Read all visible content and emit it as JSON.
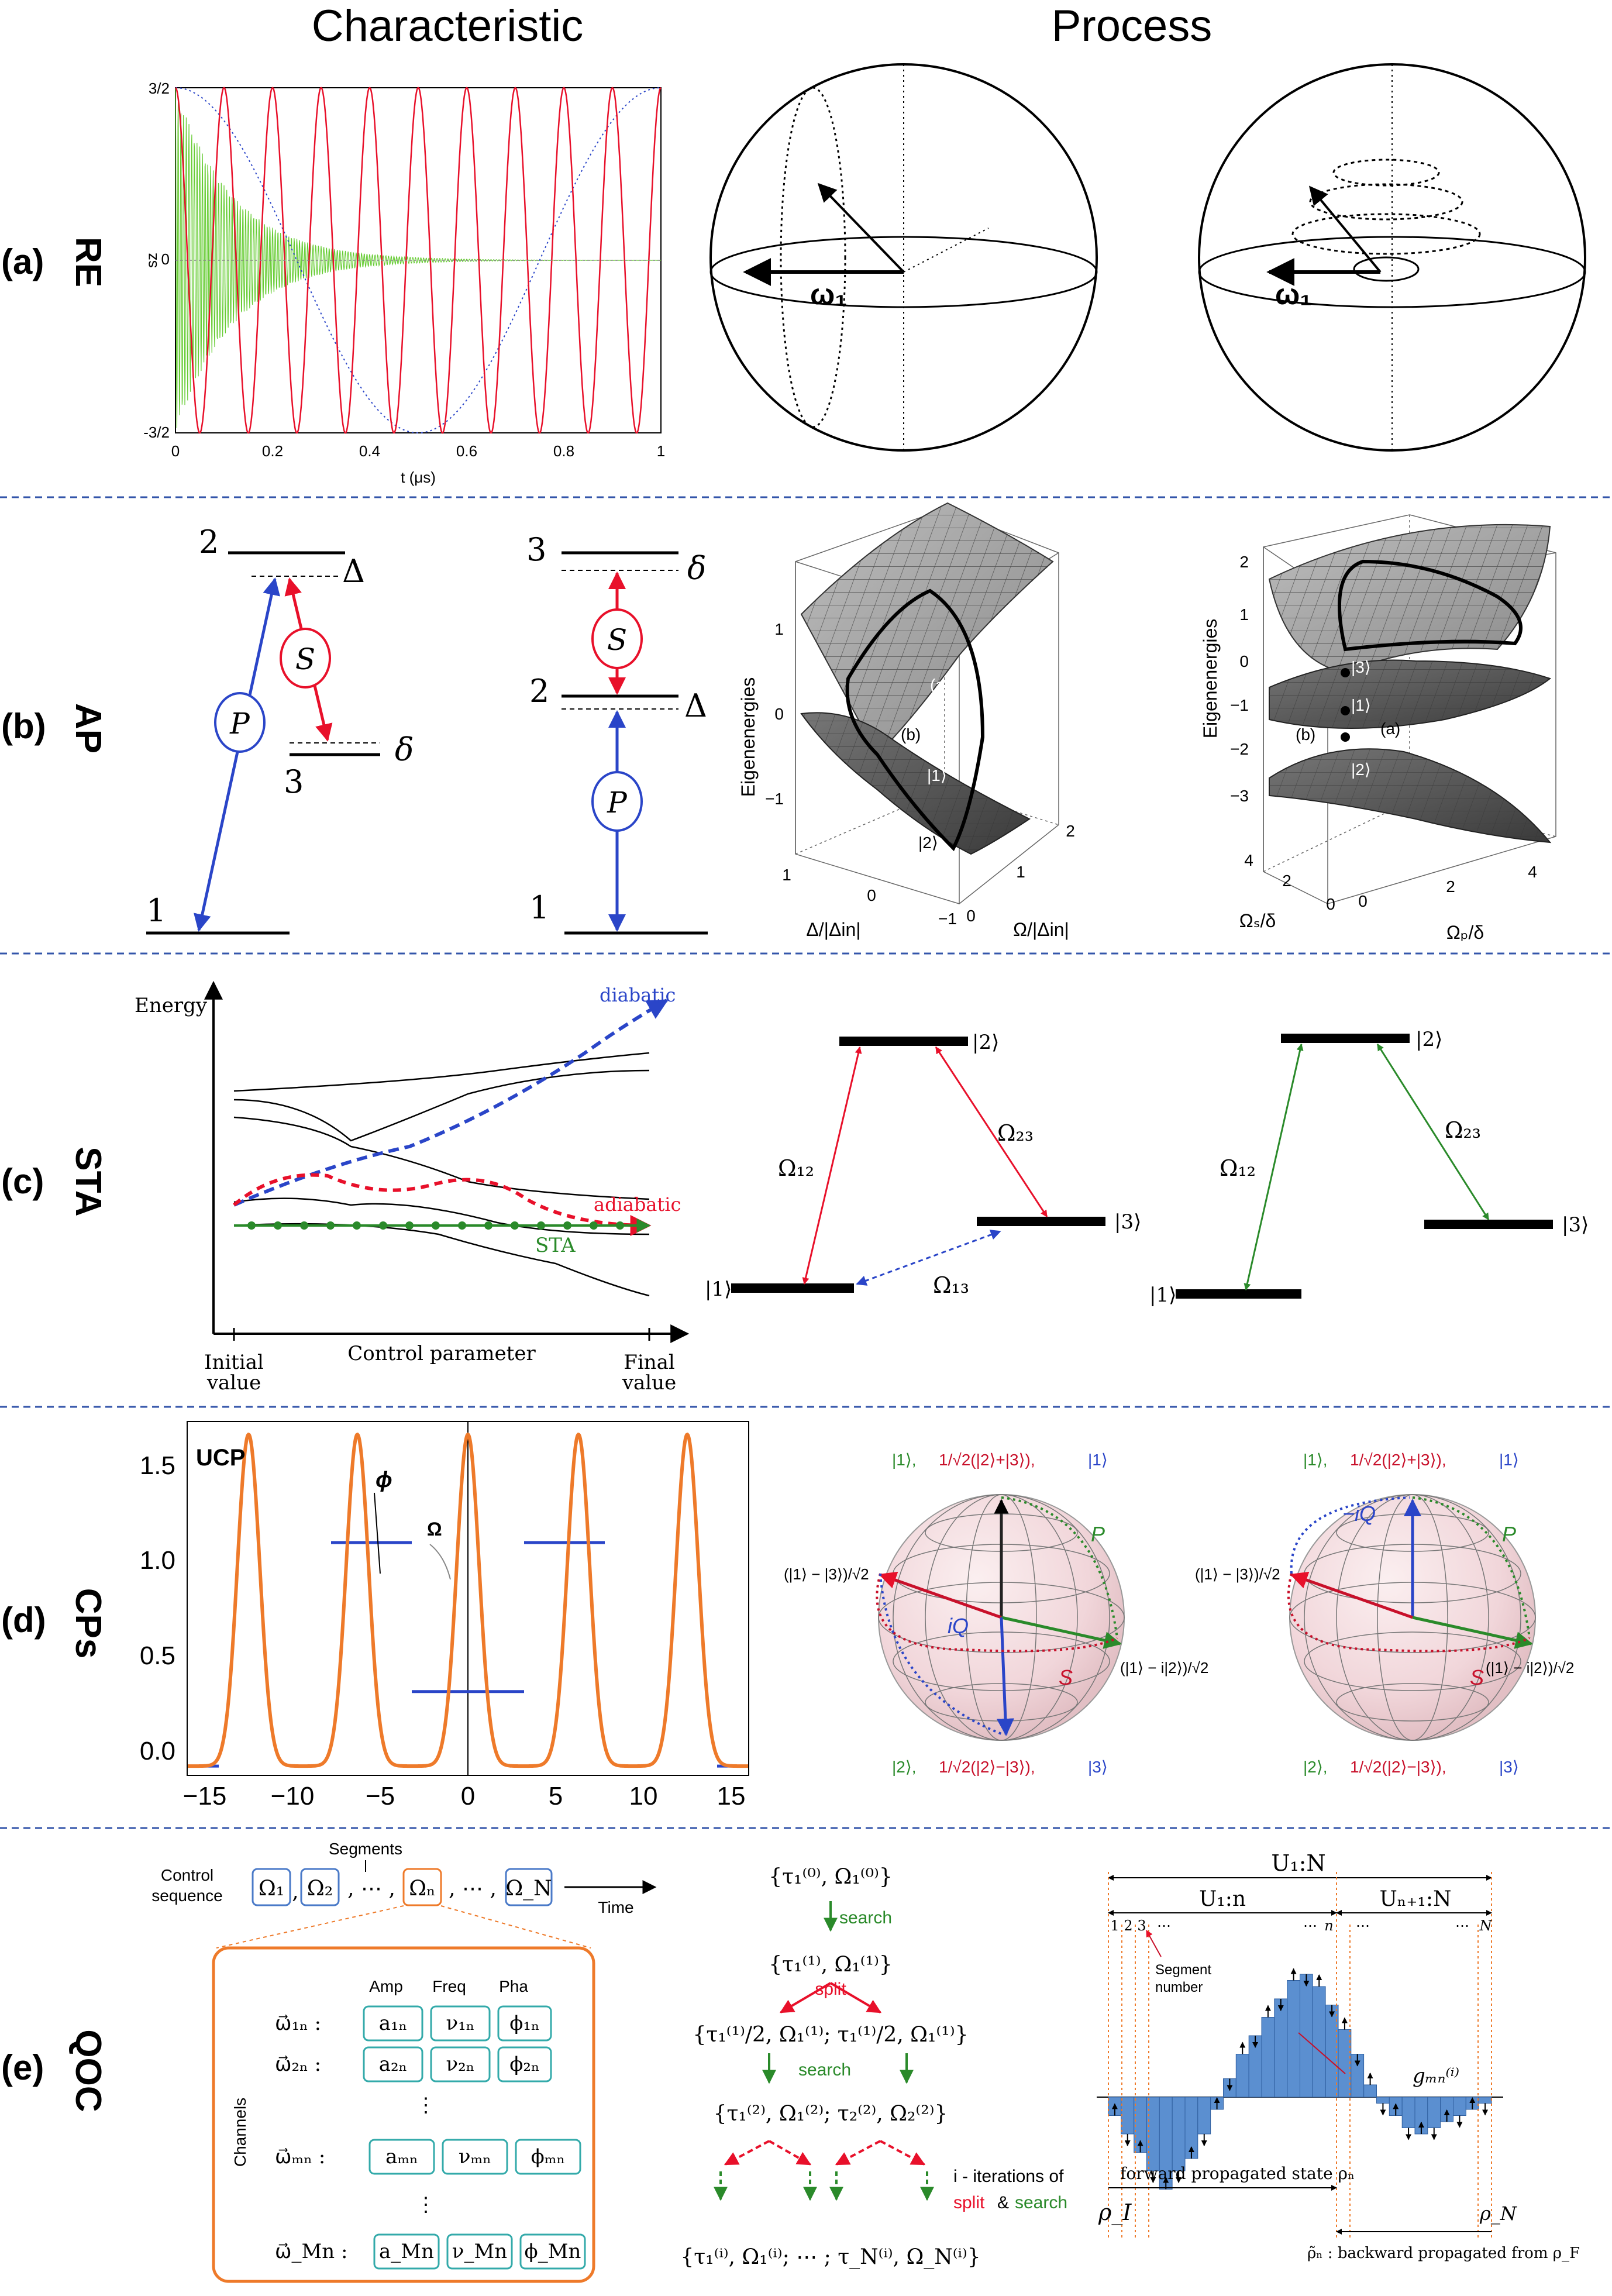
{
  "headers": {
    "characteristic": "Characteristic",
    "process": "Process"
  },
  "colors": {
    "sep": "#3355aa",
    "red": "#e8102a",
    "blue": "#2a45c8",
    "green": "#2a8a2a",
    "lime": "#66cc33",
    "orange": "#ee7a2a",
    "teal": "#33aaaa"
  },
  "rows": [
    {
      "tag": "(a)",
      "name": "RE"
    },
    {
      "tag": "(b)",
      "name": "AP"
    },
    {
      "tag": "(c)",
      "name": "STA"
    },
    {
      "tag": "(d)",
      "name": "CPs"
    },
    {
      "tag": "(e)",
      "name": "QOC"
    }
  ],
  "a": {
    "chart_data": {
      "type": "line",
      "xlabel": "t (μs)",
      "ylabel": "sz",
      "xlim": [
        0,
        1
      ],
      "ylim": [
        -1.5,
        1.5
      ],
      "x_ticks": [
        "0",
        "0.2",
        "0.4",
        "0.6",
        "0.8",
        "1"
      ],
      "y_ticks": [
        "3/2",
        "0",
        "-3/2"
      ],
      "series": [
        {
          "color": "#e8102a",
          "style": "solid",
          "cycles_in_window": 10,
          "amplitude": 1.5
        },
        {
          "color": "#2a45c8",
          "style": "dotted",
          "cycles_in_window": 1,
          "amplitude": 1.5
        },
        {
          "color": "#66cc33",
          "style": "damped-fast-oscillation",
          "amplitude": 1.5,
          "decay_time": 0.12
        }
      ]
    },
    "omega_label": "ω₁"
  },
  "b": {
    "left": {
      "levels": [
        "2",
        "3",
        "1"
      ],
      "detunings": [
        "Δ",
        "δ"
      ],
      "pump": "P",
      "stokes": "S"
    },
    "mid": {
      "levels": [
        "3",
        "2",
        "1"
      ],
      "detunings": [
        "δ",
        "Δ"
      ],
      "pump": "P",
      "stokes": "S"
    },
    "surf1": {
      "zlabel": "Eigenenergies",
      "xlabel": "Δ/|Δin|",
      "ylabel": "Ω/|Δin|",
      "z_ticks": [
        "1",
        "0",
        "−1"
      ],
      "x_ticks": [
        "1",
        "0",
        "−1"
      ],
      "y_ticks": [
        "0",
        "1",
        "2"
      ],
      "labels": [
        "(a)",
        "(c)",
        "(b)",
        "|1⟩",
        "|2⟩"
      ]
    },
    "surf2": {
      "zlabel": "Eigenenergies",
      "xlabel": "Ωₚ/δ",
      "ylabel": "Ωₛ/δ",
      "z_ticks": [
        "2",
        "1",
        "0",
        "−1",
        "−2",
        "−3"
      ],
      "x_ticks": [
        "0",
        "2",
        "4"
      ],
      "y_ticks": [
        "4",
        "2",
        "0"
      ],
      "labels": [
        "|3⟩",
        "|1⟩",
        "(b)",
        "(a)",
        "|2⟩"
      ]
    }
  },
  "c": {
    "energy_label": "Energy",
    "xaxis_label": "Control parameter",
    "initial": [
      "Initial",
      "value"
    ],
    "final": [
      "Final",
      "value"
    ],
    "paths": [
      "diabatic",
      "adiabatic",
      "STA"
    ],
    "lambda1": {
      "levels": [
        "|1⟩",
        "|2⟩",
        "|3⟩"
      ],
      "couplings": [
        "Ω₁₂",
        "Ω₂₃",
        "Ω₁₃"
      ]
    },
    "lambda2": {
      "levels": [
        "|1⟩",
        "|2⟩",
        "|3⟩"
      ],
      "couplings": [
        "Ω₁₂",
        "Ω₂₃"
      ]
    }
  },
  "d": {
    "chart_data": {
      "type": "line",
      "title": "UCP",
      "xlim": [
        -16,
        16
      ],
      "ylim": [
        -0.05,
        1.85
      ],
      "x_ticks": [
        "−15",
        "−10",
        "−5",
        "0",
        "5",
        "10",
        "15"
      ],
      "y_ticks": [
        "0.0",
        "0.5",
        "1.0",
        "1.5"
      ],
      "pulse_centers": [
        -12.5,
        -6.3,
        0,
        6.3,
        12.5
      ],
      "pulse_height": 1.78,
      "phase_steps": [
        {
          "x0": -7.8,
          "x1": -3.2,
          "y": 1.2
        },
        {
          "x0": -3.2,
          "x1": 3.2,
          "y": 0.4
        },
        {
          "x0": 3.2,
          "x1": 7.8,
          "y": 1.2
        }
      ],
      "annotations": [
        "ϕ",
        "Ω"
      ]
    },
    "bloch": {
      "top_left": "|1⟩,",
      "top_mid": "1/√2(|2⟩+|3⟩),",
      "top_right": "|1⟩",
      "left": "(|1⟩ − |3⟩)/√2",
      "right": "(|1⟩ − i|2⟩)/√2",
      "bot_left": "|2⟩,",
      "bot_mid": "1/√2(|2⟩−|3⟩),",
      "bot_right": "|3⟩",
      "arc_p": "P",
      "arc_s": "S",
      "arc_q1": "iQ",
      "arc_q2": "−iQ"
    }
  },
  "e": {
    "control_label": [
      "Control",
      "sequence"
    ],
    "segments_label": "Segments",
    "time_label": "Time",
    "seq": [
      "Ω₁",
      "Ω₂",
      "Ωₙ",
      "Ω_N"
    ],
    "cols": [
      "Amp",
      "Freq",
      "Pha"
    ],
    "channels_label": "Channels",
    "rows": [
      {
        "vec": "ω⃗₁ₙ :",
        "a": "a₁ₙ",
        "v": "ν₁ₙ",
        "p": "ϕ₁ₙ"
      },
      {
        "vec": "ω⃗₂ₙ :",
        "a": "a₂ₙ",
        "v": "ν₂ₙ",
        "p": "ϕ₂ₙ"
      },
      {
        "vec": "ω⃗ₘₙ :",
        "a": "aₘₙ",
        "v": "νₘₙ",
        "p": "ϕₘₙ"
      },
      {
        "vec": "ω⃗_Mn :",
        "a": "a_Mn",
        "v": "ν_Mn",
        "p": "ϕ_Mn"
      }
    ],
    "tree": {
      "s0": "{τ₁⁽⁰⁾, Ω₁⁽⁰⁾}",
      "search": "search",
      "s1": "{τ₁⁽¹⁾, Ω₁⁽¹⁾}",
      "split": "split",
      "s2": "{τ₁⁽¹⁾/2, Ω₁⁽¹⁾; τ₁⁽¹⁾/2, Ω₁⁽¹⁾}",
      "s3": "{τ₁⁽²⁾, Ω₁⁽²⁾; τ₂⁽²⁾, Ω₂⁽²⁾}",
      "iter_a": "i - iterations of",
      "iter_b": "&",
      "sN": "{τ₁⁽ⁱ⁾, Ω₁⁽ⁱ⁾; ⋯ ; τ_N⁽ⁱ⁾, Ω_N⁽ⁱ⁾}"
    },
    "grape": {
      "u_full": "U₁:N",
      "u_left": "U₁:n",
      "u_right": "Uₙ₊₁:N",
      "ticks": [
        "1",
        "2",
        "3",
        "⋯",
        "⋯",
        "n",
        "⋯",
        "⋯",
        "N"
      ],
      "seg_note": [
        "Segment",
        "number"
      ],
      "g_label": "gₘₙ⁽ⁱ⁾",
      "forward": "forward propagated state ρₙ",
      "rho_i": "ρ_I",
      "rho_n": "ρ_N",
      "backward": "ρ̃ₙ : backward propagated from ρ_F",
      "bars": [
        -0.15,
        -0.3,
        -0.45,
        -0.6,
        -0.75,
        -0.6,
        -0.5,
        -0.3,
        -0.1,
        0.15,
        0.35,
        0.5,
        0.65,
        0.8,
        0.95,
        1.0,
        0.9,
        0.75,
        0.55,
        0.35,
        0.1,
        -0.05,
        -0.15,
        -0.25,
        -0.3,
        -0.25,
        -0.2,
        -0.15,
        -0.1,
        -0.05
      ]
    }
  }
}
